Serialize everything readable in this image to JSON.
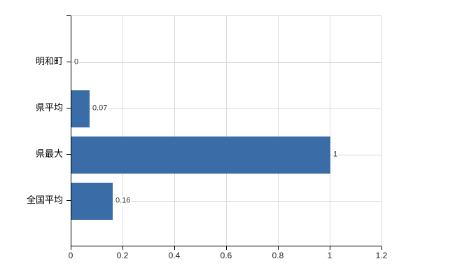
{
  "chart_data": {
    "type": "bar",
    "orientation": "horizontal",
    "title": "",
    "categories": [
      "明和町",
      "県平均",
      "県最大",
      "全国平均"
    ],
    "values": [
      0,
      0.07,
      1,
      0.16
    ],
    "value_labels": [
      "0",
      "0.07",
      "1",
      "0.16"
    ],
    "xlim": [
      0,
      1.2
    ],
    "xticks": [
      0,
      0.2,
      0.4,
      0.6,
      0.8,
      1,
      1.2
    ],
    "xtick_labels": [
      "0",
      "0.2",
      "0.4",
      "0.6",
      "0.8",
      "1",
      "1.2"
    ],
    "grid": true,
    "legend": false,
    "bar_color": "#3a6ca7",
    "grid_color": "#d9d9d9",
    "axis_color": "#000000",
    "text_color": "#000000",
    "value_label_color": "#333333",
    "background_color": "#ffffff"
  }
}
